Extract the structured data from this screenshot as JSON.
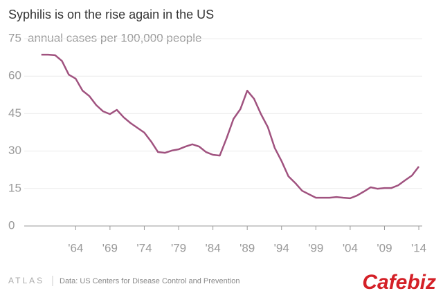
{
  "chart_data": {
    "type": "line",
    "title": "Syphilis is on the rise again in the US",
    "y_label": "annual cases per 100,000 people",
    "x": [
      1959,
      1960,
      1961,
      1962,
      1963,
      1964,
      1965,
      1966,
      1967,
      1968,
      1969,
      1970,
      1971,
      1972,
      1973,
      1974,
      1975,
      1976,
      1977,
      1978,
      1979,
      1980,
      1981,
      1982,
      1983,
      1984,
      1985,
      1986,
      1987,
      1988,
      1989,
      1990,
      1991,
      1992,
      1993,
      1994,
      1995,
      1996,
      1997,
      1998,
      1999,
      2000,
      2001,
      2002,
      2003,
      2004,
      2005,
      2006,
      2007,
      2008,
      2009,
      2010,
      2011,
      2012,
      2013,
      2014
    ],
    "series": [
      {
        "name": "Syphilis",
        "color": "#a0527f",
        "values": [
          68.6,
          68.6,
          68.4,
          66.1,
          60.6,
          59,
          54.2,
          52,
          48.4,
          45.9,
          44.8,
          46.5,
          43.5,
          41.2,
          39.3,
          37.4,
          33.8,
          29.6,
          29.3,
          30.2,
          30.7,
          31.8,
          32.7,
          31.8,
          29.6,
          28.5,
          28.2,
          35.2,
          42.9,
          46.8,
          54.2,
          50.9,
          44.8,
          39.6,
          31.3,
          26,
          19.9,
          17.2,
          14.1,
          12.7,
          11.3,
          11.3,
          11.3,
          11.6,
          11.3,
          11.1,
          12.2,
          13.8,
          15.5,
          14.9,
          15.2,
          15.2,
          16.3,
          18.3,
          20.2,
          23.8
        ]
      }
    ],
    "xlim": [
      1956,
      2014.5
    ],
    "xticks": [
      {
        "value": 1964,
        "label": "'64"
      },
      {
        "value": 1969,
        "label": "'69"
      },
      {
        "value": 1974,
        "label": "'74"
      },
      {
        "value": 1979,
        "label": "'79"
      },
      {
        "value": 1984,
        "label": "'84"
      },
      {
        "value": 1989,
        "label": "'89"
      },
      {
        "value": 1994,
        "label": "'94"
      },
      {
        "value": 1999,
        "label": "'99"
      },
      {
        "value": 2004,
        "label": "'04"
      },
      {
        "value": 2009,
        "label": "'09"
      },
      {
        "value": 2014,
        "label": "'14"
      }
    ],
    "ylim": [
      0,
      75
    ],
    "yticks": [
      0,
      15,
      30,
      45,
      60,
      75
    ],
    "grid": true,
    "brand": "ATLAS",
    "source": "Data:  US Centers for Disease Control and Prevention",
    "watermark": "Cafebiz"
  }
}
